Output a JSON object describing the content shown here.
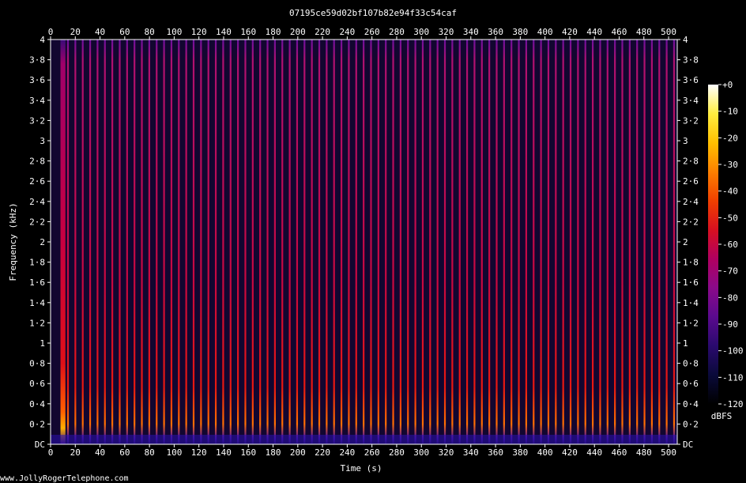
{
  "chart_data": {
    "type": "heatmap",
    "title": "07195ce59d02bf107b82e94f33c54caf",
    "xlabel": "Time (s)",
    "ylabel": "Frequency (kHz)",
    "xlim": [
      0,
      507
    ],
    "ylim": [
      0,
      4
    ],
    "x_ticks": [
      "0",
      "20",
      "40",
      "60",
      "80",
      "100",
      "120",
      "140",
      "160",
      "180",
      "200",
      "220",
      "240",
      "260",
      "280",
      "300",
      "320",
      "340",
      "360",
      "380",
      "400",
      "420",
      "440",
      "460",
      "480",
      "500"
    ],
    "y_ticks": [
      "DC",
      "0·2",
      "0·4",
      "0·6",
      "0·8",
      "1",
      "1·2",
      "1·4",
      "1·6",
      "1·8",
      "2",
      "2·2",
      "2·4",
      "2·6",
      "2·8",
      "3",
      "3·2",
      "3·4",
      "3·6",
      "3·8",
      "4"
    ],
    "colorbar": {
      "label": "dBFS",
      "range": [
        -120,
        0
      ],
      "ticks": [
        "+0",
        "-10",
        "-20",
        "-30",
        "-40",
        "-50",
        "-60",
        "-70",
        "-80",
        "-90",
        "-100",
        "-110",
        "-120"
      ],
      "colors": [
        "#000000",
        "#0a0a3a",
        "#2a0a6e",
        "#5a0a8e",
        "#8a0a8a",
        "#b00060",
        "#d81020",
        "#f04000",
        "#fc8000",
        "#ffc000",
        "#ffee40",
        "#ffffff"
      ]
    },
    "pulse_period_s": 5.98,
    "first_pulse_s": 14,
    "onset_band_s": [
      8,
      12
    ]
  },
  "watermark": "www.JollyRogerTelephone.com"
}
